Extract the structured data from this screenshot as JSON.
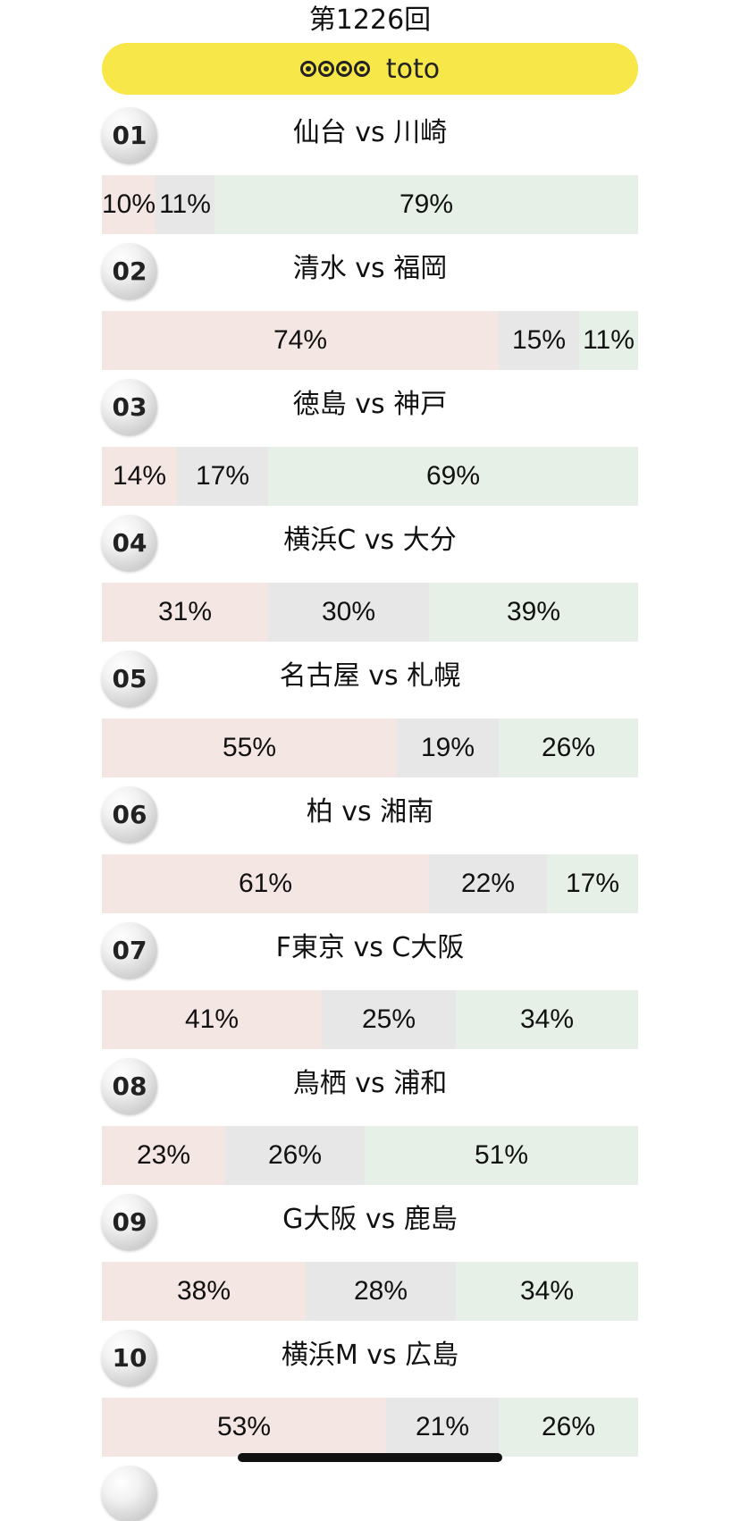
{
  "header": {
    "round_title": "第1226回",
    "banner_label": "toto"
  },
  "matches": [
    {
      "number": "01",
      "title": "仙台 vs 川崎",
      "home": "10%",
      "draw": "11%",
      "away": "79%",
      "home_pct": 10,
      "draw_pct": 11,
      "away_pct": 79
    },
    {
      "number": "02",
      "title": "清水 vs 福岡",
      "home": "74%",
      "draw": "15%",
      "away": "11%",
      "home_pct": 74,
      "draw_pct": 15,
      "away_pct": 11
    },
    {
      "number": "03",
      "title": "徳島 vs 神戸",
      "home": "14%",
      "draw": "17%",
      "away": "69%",
      "home_pct": 14,
      "draw_pct": 17,
      "away_pct": 69
    },
    {
      "number": "04",
      "title": "横浜C vs 大分",
      "home": "31%",
      "draw": "30%",
      "away": "39%",
      "home_pct": 31,
      "draw_pct": 30,
      "away_pct": 39
    },
    {
      "number": "05",
      "title": "名古屋 vs 札幌",
      "home": "55%",
      "draw": "19%",
      "away": "26%",
      "home_pct": 55,
      "draw_pct": 19,
      "away_pct": 26
    },
    {
      "number": "06",
      "title": "柏 vs 湘南",
      "home": "61%",
      "draw": "22%",
      "away": "17%",
      "home_pct": 61,
      "draw_pct": 22,
      "away_pct": 17
    },
    {
      "number": "07",
      "title": "F東京 vs C大阪",
      "home": "41%",
      "draw": "25%",
      "away": "34%",
      "home_pct": 41,
      "draw_pct": 25,
      "away_pct": 34
    },
    {
      "number": "08",
      "title": "鳥栖 vs 浦和",
      "home": "23%",
      "draw": "26%",
      "away": "51%",
      "home_pct": 23,
      "draw_pct": 26,
      "away_pct": 51
    },
    {
      "number": "09",
      "title": "G大阪 vs 鹿島",
      "home": "38%",
      "draw": "28%",
      "away": "34%",
      "home_pct": 38,
      "draw_pct": 28,
      "away_pct": 34
    },
    {
      "number": "10",
      "title": "横浜M vs 広島",
      "home": "53%",
      "draw": "21%",
      "away": "26%",
      "home_pct": 53,
      "draw_pct": 21,
      "away_pct": 26
    }
  ],
  "colors": {
    "banner": "#f8e748",
    "home_bg": "#f4e6e3",
    "draw_bg": "#e7e7e7",
    "away_bg": "#e6f0e7"
  }
}
